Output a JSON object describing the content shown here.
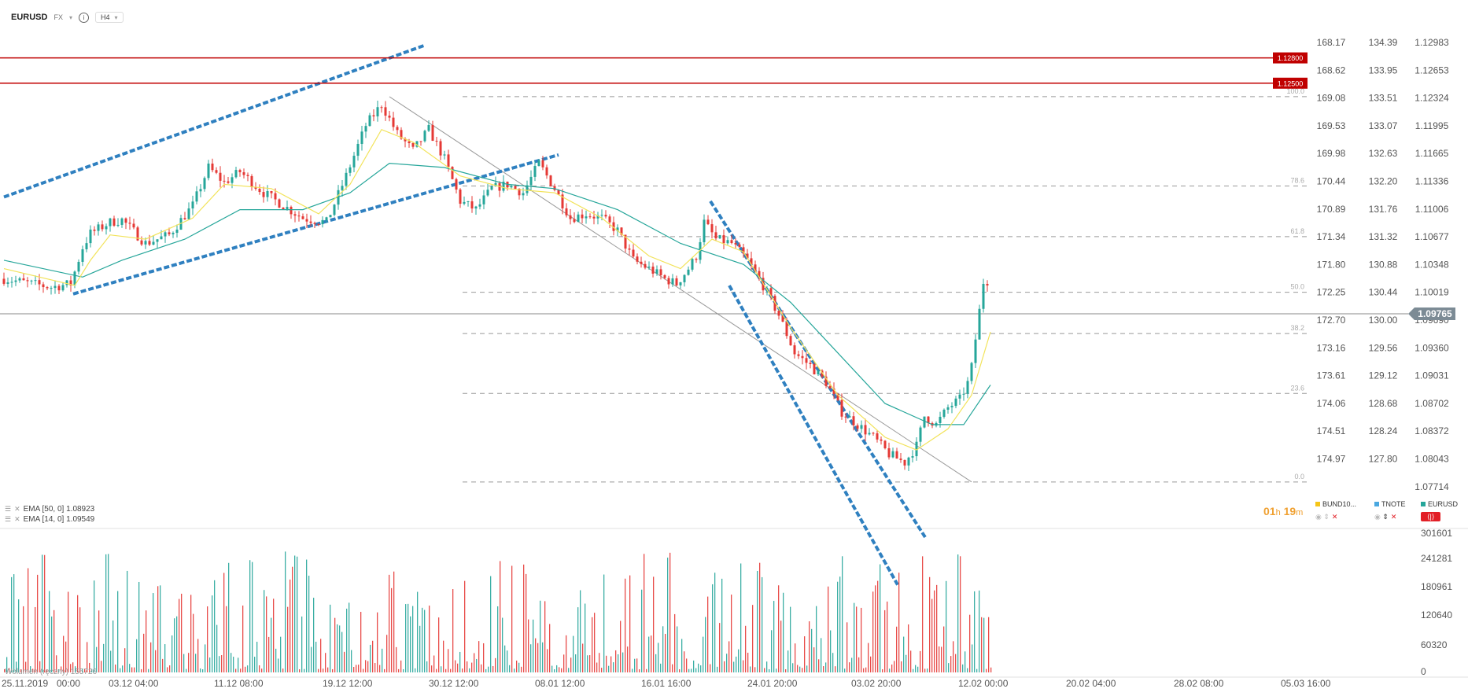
{
  "header": {
    "symbol": "EURUSD",
    "market": "FX",
    "info_glyph": "i",
    "timeframe": "H4"
  },
  "indicators": [
    {
      "label": "EMA [50, 0] 1.08923",
      "color": "#26a69a"
    },
    {
      "label": "EMA [14, 0] 1.09549",
      "color": "#f5e663"
    }
  ],
  "volume_legend": "Wolumen (ręczny)  155726",
  "timer": {
    "hours": "01",
    "h": "h",
    "minutes": "19",
    "m": "m"
  },
  "symbols": [
    {
      "name": "BUND10...",
      "color": "#f5c518"
    },
    {
      "name": "TNOTE",
      "color": "#4aa8e0"
    },
    {
      "name": "EURUSD",
      "color": "#26a69a"
    }
  ],
  "colors": {
    "up": "#26a69a",
    "down": "#e53935",
    "ema50": "#26a69a",
    "ema14": "#f2e35a",
    "trend": "#2f80c0",
    "level": "#c00000"
  },
  "chart_data": {
    "type": "candlestick",
    "symbol": "EURUSD",
    "timeframe": "H4",
    "x_tick_labels": [
      "25.11.2019",
      "00:00",
      "03.12 04:00",
      "11.12 08:00",
      "19.12 12:00",
      "30.12 12:00",
      "08.01 12:00",
      "16.01 16:00",
      "24.01 20:00",
      "03.02 20:00",
      "12.02 00:00",
      "20.02 04:00",
      "28.02 08:00",
      "05.03 16:00"
    ],
    "price_axis": [
      "1.12983",
      "1.12653",
      "1.12324",
      "1.11995",
      "1.11665",
      "1.11336",
      "1.11006",
      "1.10677",
      "1.10348",
      "1.10019",
      "1.09690",
      "1.09360",
      "1.09031",
      "1.08702",
      "1.08372",
      "1.08043",
      "1.07714"
    ],
    "bund_axis": [
      "168.17",
      "168.62",
      "169.08",
      "169.53",
      "169.98",
      "170.44",
      "170.89",
      "171.34",
      "171.80",
      "172.25",
      "172.70",
      "173.16",
      "173.61",
      "174.06",
      "174.51",
      "174.97"
    ],
    "tnote_axis": [
      "134.39",
      "133.95",
      "133.51",
      "133.07",
      "132.63",
      "132.20",
      "131.76",
      "131.32",
      "130.88",
      "130.44",
      "130.00",
      "129.56",
      "129.12",
      "128.68",
      "128.24",
      "127.80"
    ],
    "volume_axis": [
      "301601",
      "241281",
      "180961",
      "120640",
      "60320",
      "0"
    ],
    "current_price": "1.09765",
    "horizontal_levels": [
      {
        "label": "1.12800",
        "price": 1.128
      },
      {
        "label": "1.12500",
        "price": 1.125
      }
    ],
    "fibonacci": [
      {
        "label": "100.0",
        "price": 1.1234
      },
      {
        "label": "78.6",
        "price": 1.1128
      },
      {
        "label": "61.8",
        "price": 1.1068
      },
      {
        "label": "50.0",
        "price": 1.1002
      },
      {
        "label": "38.2",
        "price": 1.0953
      },
      {
        "label": "23.6",
        "price": 1.0882
      },
      {
        "label": "0.0",
        "price": 1.0777
      }
    ],
    "close_path": [
      [
        0,
        1.1018
      ],
      [
        60,
        1.1008
      ],
      [
        85,
        1.1012
      ],
      [
        100,
        1.1055
      ],
      [
        110,
        1.1072
      ],
      [
        135,
        1.1085
      ],
      [
        150,
        1.1088
      ],
      [
        180,
        1.106
      ],
      [
        210,
        1.107
      ],
      [
        240,
        1.1105
      ],
      [
        260,
        1.115
      ],
      [
        280,
        1.1132
      ],
      [
        300,
        1.1145
      ],
      [
        330,
        1.112
      ],
      [
        355,
        1.1105
      ],
      [
        380,
        1.109
      ],
      [
        410,
        1.1085
      ],
      [
        435,
        1.114
      ],
      [
        460,
        1.12
      ],
      [
        480,
        1.1225
      ],
      [
        500,
        1.119
      ],
      [
        520,
        1.117
      ],
      [
        540,
        1.1195
      ],
      [
        560,
        1.116
      ],
      [
        580,
        1.111
      ],
      [
        600,
        1.11
      ],
      [
        620,
        1.1125
      ],
      [
        640,
        1.113
      ],
      [
        660,
        1.112
      ],
      [
        680,
        1.1155
      ],
      [
        700,
        1.1125
      ],
      [
        720,
        1.109
      ],
      [
        740,
        1.1095
      ],
      [
        760,
        1.109
      ],
      [
        780,
        1.1075
      ],
      [
        800,
        1.104
      ],
      [
        820,
        1.103
      ],
      [
        840,
        1.1018
      ],
      [
        855,
        1.1012
      ],
      [
        870,
        1.103
      ],
      [
        880,
        1.1045
      ],
      [
        890,
        1.1085
      ],
      [
        905,
        1.1065
      ],
      [
        925,
        1.106
      ],
      [
        945,
        1.104
      ],
      [
        965,
        1.101
      ],
      [
        985,
        1.0975
      ],
      [
        1005,
        1.093
      ],
      [
        1025,
        1.0915
      ],
      [
        1045,
        1.0895
      ],
      [
        1065,
        1.086
      ],
      [
        1085,
        1.0845
      ],
      [
        1105,
        1.083
      ],
      [
        1125,
        1.081
      ],
      [
        1145,
        1.08
      ],
      [
        1160,
        1.082
      ],
      [
        1170,
        1.0855
      ],
      [
        1185,
        1.0845
      ],
      [
        1200,
        1.0865
      ],
      [
        1215,
        1.0875
      ],
      [
        1228,
        1.09
      ],
      [
        1240,
        1.098
      ],
      [
        1248,
        1.1035
      ],
      [
        1254,
        1.0977
      ]
    ],
    "ema14_path": [
      [
        0,
        1.103
      ],
      [
        90,
        1.101
      ],
      [
        110,
        1.104
      ],
      [
        135,
        1.107
      ],
      [
        180,
        1.1065
      ],
      [
        240,
        1.109
      ],
      [
        280,
        1.113
      ],
      [
        340,
        1.1125
      ],
      [
        400,
        1.1095
      ],
      [
        440,
        1.113
      ],
      [
        480,
        1.1195
      ],
      [
        520,
        1.118
      ],
      [
        580,
        1.114
      ],
      [
        640,
        1.1125
      ],
      [
        700,
        1.112
      ],
      [
        760,
        1.109
      ],
      [
        820,
        1.1045
      ],
      [
        860,
        1.103
      ],
      [
        900,
        1.1065
      ],
      [
        940,
        1.105
      ],
      [
        1000,
        1.096
      ],
      [
        1060,
        1.088
      ],
      [
        1120,
        1.083
      ],
      [
        1160,
        1.0815
      ],
      [
        1200,
        1.084
      ],
      [
        1230,
        1.088
      ],
      [
        1254,
        1.0955
      ]
    ],
    "ema50_path": [
      [
        0,
        1.104
      ],
      [
        100,
        1.102
      ],
      [
        150,
        1.104
      ],
      [
        230,
        1.1065
      ],
      [
        300,
        1.11
      ],
      [
        380,
        1.11
      ],
      [
        440,
        1.112
      ],
      [
        490,
        1.1155
      ],
      [
        560,
        1.115
      ],
      [
        640,
        1.113
      ],
      [
        700,
        1.1125
      ],
      [
        780,
        1.11
      ],
      [
        860,
        1.106
      ],
      [
        940,
        1.1035
      ],
      [
        1000,
        1.099
      ],
      [
        1060,
        1.093
      ],
      [
        1120,
        1.087
      ],
      [
        1180,
        1.0845
      ],
      [
        1220,
        1.0845
      ],
      [
        1254,
        1.0892
      ]
    ],
    "grey_trendline": [
      [
        490,
        1.1234
      ],
      [
        1230,
        1.0777
      ]
    ],
    "channels": [
      [
        [
          0,
          1.1115
        ],
        [
          535,
          1.1295
        ]
      ],
      [
        [
          88,
          1.1
        ],
        [
          705,
          1.1165
        ]
      ],
      [
        [
          898,
          1.111
        ],
        [
          1172,
          1.071
        ]
      ],
      [
        [
          922,
          1.101
        ],
        [
          1136,
          1.0655
        ]
      ]
    ],
    "volume_bars_approx_max": 301601
  }
}
